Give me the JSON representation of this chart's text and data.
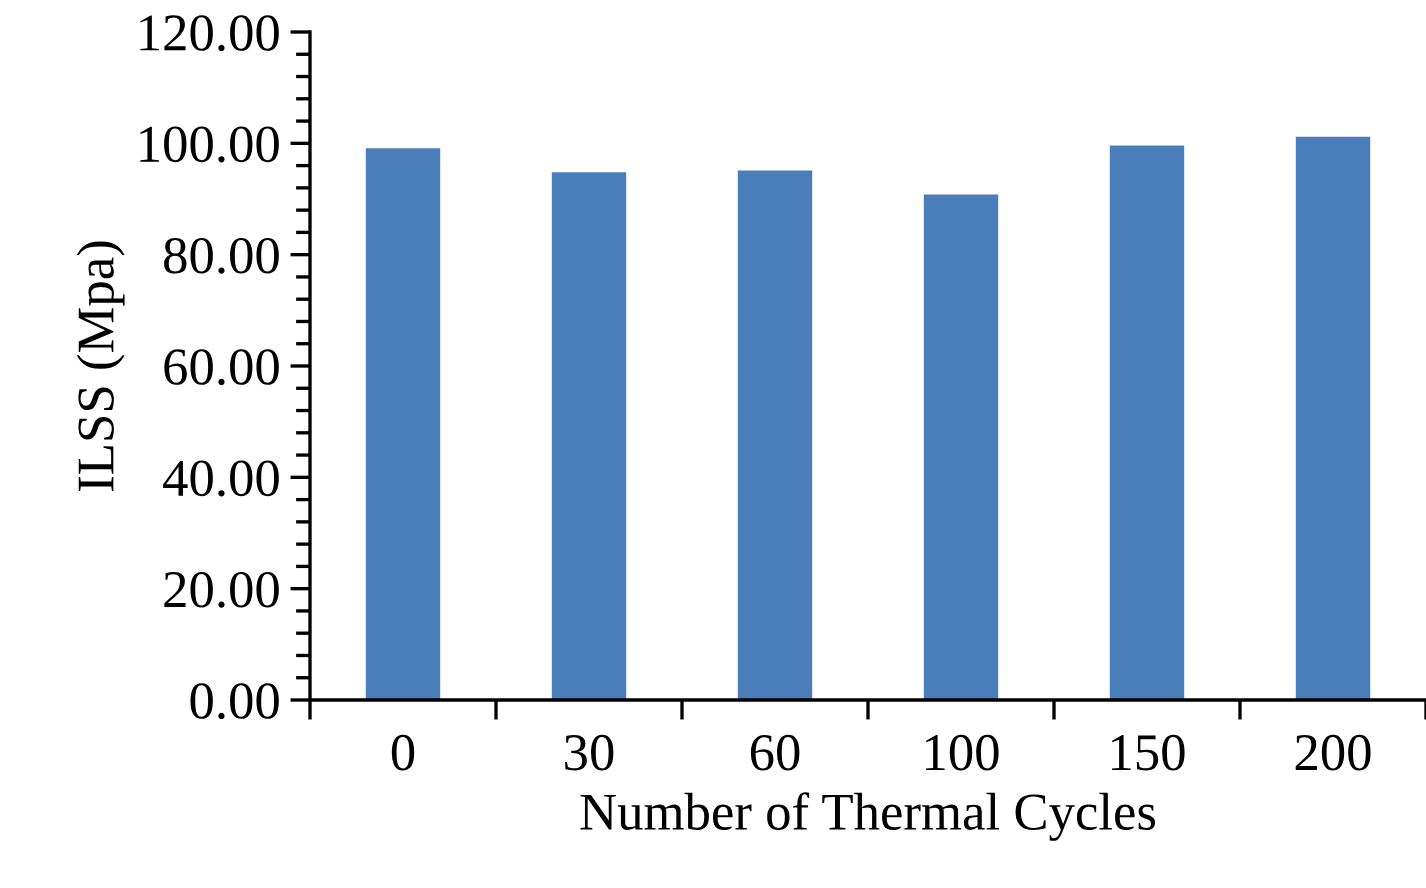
{
  "chart_data": {
    "type": "bar",
    "xlabel": "Number of Thermal Cycles",
    "ylabel": "ILSS (Mpa)",
    "categories": [
      "0",
      "30",
      "60",
      "100",
      "150",
      "200"
    ],
    "values": [
      99.1,
      94.8,
      95.1,
      90.8,
      99.6,
      101.2
    ],
    "color": "#4a7ebb",
    "ylim": [
      0,
      120
    ],
    "yticks": [
      {
        "value": 0,
        "label": "0.00"
      },
      {
        "value": 20,
        "label": "20.00"
      },
      {
        "value": 40,
        "label": "40.00"
      },
      {
        "value": 60,
        "label": "60.00"
      },
      {
        "value": 80,
        "label": "80.00"
      },
      {
        "value": 100,
        "label": "100.00"
      },
      {
        "value": 120,
        "label": "120.00"
      }
    ],
    "grid": false
  }
}
